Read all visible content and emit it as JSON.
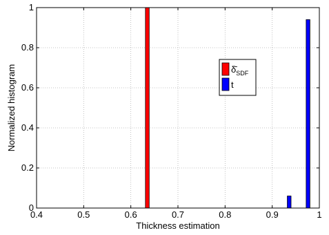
{
  "chart_data": {
    "type": "bar",
    "xlabel": "Thickness estimation",
    "ylabel": "Normalized histogram",
    "xlim": [
      0.4,
      1.0
    ],
    "ylim": [
      0,
      1
    ],
    "xticks": [
      0.4,
      0.5,
      0.6,
      0.7,
      0.8,
      0.9,
      1.0
    ],
    "xtick_labels": [
      "0.4",
      "0.5",
      "0.6",
      "0.7",
      "0.8",
      "0.9",
      "1"
    ],
    "yticks": [
      0,
      0.2,
      0.4,
      0.6,
      0.8,
      1.0
    ],
    "ytick_labels": [
      "0",
      "0.2",
      "0.4",
      "0.6",
      "0.8",
      "1"
    ],
    "grid": true,
    "legend_position": "upper-right-center",
    "bar_width": 0.008,
    "series": [
      {
        "name_main": "δ̄",
        "name_sub": "SDF",
        "color": "#ff0000",
        "bars": [
          {
            "x": 0.635,
            "y": 1.0
          }
        ]
      },
      {
        "name_main": "t",
        "name_sub": "",
        "color": "#0000ff",
        "bars": [
          {
            "x": 0.936,
            "y": 0.06
          },
          {
            "x": 0.976,
            "y": 0.94
          }
        ]
      }
    ]
  }
}
